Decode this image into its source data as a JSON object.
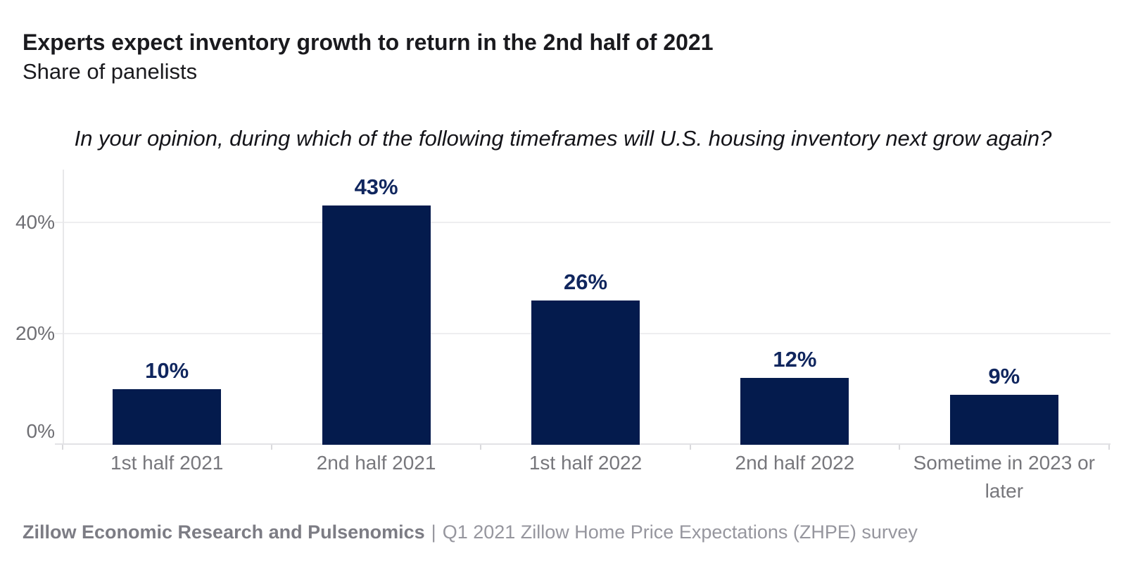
{
  "header": {
    "title": "Experts expect inventory growth to return in the 2nd half of 2021",
    "subtitle": "Share of panelists"
  },
  "chart_data": {
    "type": "bar",
    "title": "Experts expect inventory growth to return in the 2nd half of 2021",
    "subtitle": "Share of panelists",
    "annotation": "In your opinion, during which of the following timeframes will U.S. housing inventory next grow again?",
    "categories": [
      "1st half 2021",
      "2nd half 2021",
      "1st half 2022",
      "2nd half 2022",
      "Sometime in 2023 or later"
    ],
    "values": [
      10,
      43,
      26,
      12,
      9
    ],
    "value_labels": [
      "10%",
      "43%",
      "26%",
      "12%",
      "9%"
    ],
    "y_axis": {
      "ticks": [
        {
          "value": 0,
          "label": "0%"
        },
        {
          "value": 20,
          "label": "20%"
        },
        {
          "value": 40,
          "label": "40%"
        }
      ],
      "range": [
        0,
        50
      ]
    },
    "grid": "horizontal",
    "legend": "none",
    "bar_color": "#041B4D",
    "value_label_color": "#10265e"
  },
  "footer": {
    "source": "Zillow Economic Research and Pulsenomics",
    "separator": "|",
    "note": "Q1 2021 Zillow Home Price Expectations (ZHPE) survey"
  }
}
